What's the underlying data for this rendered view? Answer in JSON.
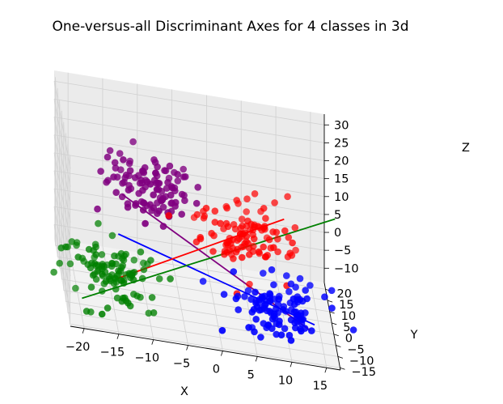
{
  "chart_data": {
    "type": "scatter",
    "title": "One-versus-all Discriminant Axes for 4 classes in 3d",
    "xlabel": "X",
    "ylabel": "Y",
    "zlabel": "Z",
    "xlim": [
      -22,
      17
    ],
    "ylim": [
      -16,
      23
    ],
    "zlim": [
      -14,
      33
    ],
    "xticks": [
      "−20",
      "−15",
      "−10",
      "−5",
      "0",
      "5",
      "10",
      "15"
    ],
    "yticks": [
      "−15",
      "−10",
      "−5",
      "0",
      "5",
      "10",
      "15",
      "20"
    ],
    "zticks": [
      "−10",
      "−5",
      "0",
      "5",
      "10",
      "15",
      "20",
      "25",
      "30"
    ],
    "grid": true,
    "series": [
      {
        "color": "#800080",
        "center": [
          -10,
          -5,
          22
        ],
        "spread": [
          3.5,
          3.5,
          4
        ],
        "count": 110
      },
      {
        "color": "#ff0000",
        "center": [
          5,
          5,
          6
        ],
        "spread": [
          3.5,
          3.5,
          4
        ],
        "count": 110
      },
      {
        "color": "#0000ff",
        "center": [
          8,
          -5,
          -6
        ],
        "spread": [
          3.5,
          3.5,
          4
        ],
        "count": 110
      },
      {
        "color": "#008000",
        "center": [
          -15,
          5,
          -10
        ],
        "spread": [
          3.5,
          3.5,
          4
        ],
        "count": 110
      }
    ],
    "axes_lines": [
      {
        "color": "#800080",
        "from": [
          -14,
          -7.5,
          20
        ],
        "to": [
          14,
          6.5,
          -18
        ]
      },
      {
        "color": "#0000ff",
        "from": [
          -14,
          2,
          3
        ],
        "to": [
          13.5,
          -12,
          -5
        ]
      },
      {
        "color": "#ff0000",
        "from": [
          -14,
          3,
          -10
        ],
        "to": [
          10,
          3,
          14
        ]
      },
      {
        "color": "#008000",
        "from": [
          -19,
          6,
          -19
        ],
        "to": [
          17,
          -3,
          20
        ]
      }
    ]
  }
}
